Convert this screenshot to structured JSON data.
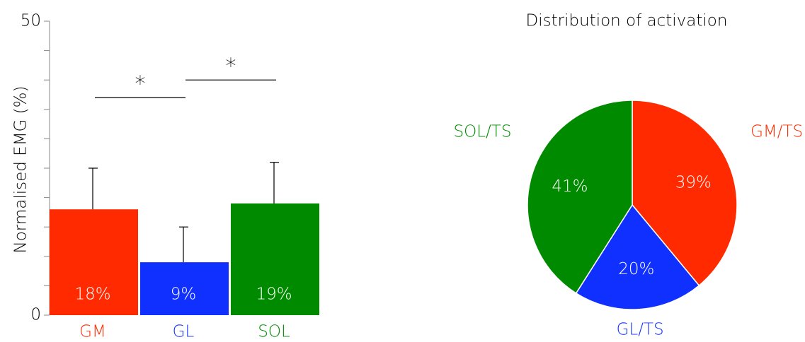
{
  "chart_data": [
    {
      "type": "bar",
      "y_label": "Normalised EMG (%)",
      "categories": [
        "GM",
        "GL",
        "SOL"
      ],
      "values": [
        18,
        9,
        19
      ],
      "value_labels": [
        "18%",
        "9%",
        "19%"
      ],
      "errors": [
        7,
        6,
        7
      ],
      "colors": [
        "#ff2a00",
        "#1030ff",
        "#008a00"
      ],
      "ylim": [
        0,
        50
      ],
      "yticks": [
        0,
        50
      ],
      "minor_yticks": [
        5,
        10,
        15,
        20,
        25,
        30,
        35,
        40,
        45
      ],
      "annotations": [
        {
          "text": "*",
          "from": 0,
          "to": 1,
          "y": 37
        },
        {
          "text": "*",
          "from": 1,
          "to": 2,
          "y": 40
        }
      ]
    },
    {
      "type": "pie",
      "title": "Distribution of activation",
      "categories": [
        "GM/TS",
        "GL/TS",
        "SOL/TS"
      ],
      "values": [
        39,
        20,
        41
      ],
      "value_labels": [
        "39%",
        "20%",
        "41%"
      ],
      "colors": [
        "#ff2a00",
        "#1030ff",
        "#008a00"
      ]
    }
  ]
}
